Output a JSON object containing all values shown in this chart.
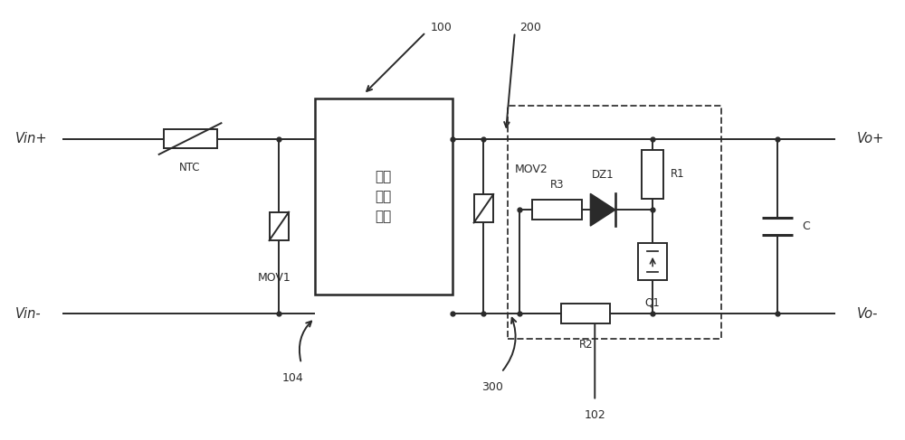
{
  "bg_color": "#ffffff",
  "line_color": "#2a2a2a",
  "dashed_color": "#444444",
  "lw": 1.4,
  "fig_width": 10.0,
  "fig_height": 4.87,
  "labels": {
    "vin_plus": "Vin+",
    "vin_minus": "Vin-",
    "vo_plus": "Vo+",
    "vo_minus": "Vo-",
    "ntc": "NTC",
    "mov1": "MOV1",
    "mov2": "MOV2",
    "r1": "R1",
    "r2": "R2",
    "r3": "R3",
    "dz1": "DZ1",
    "q1": "Q1",
    "c": "C",
    "box_text": "整流\n滤波\n电路",
    "label_100": "100",
    "label_102": "102",
    "label_104": "104",
    "label_200": "200",
    "label_300": "300"
  }
}
